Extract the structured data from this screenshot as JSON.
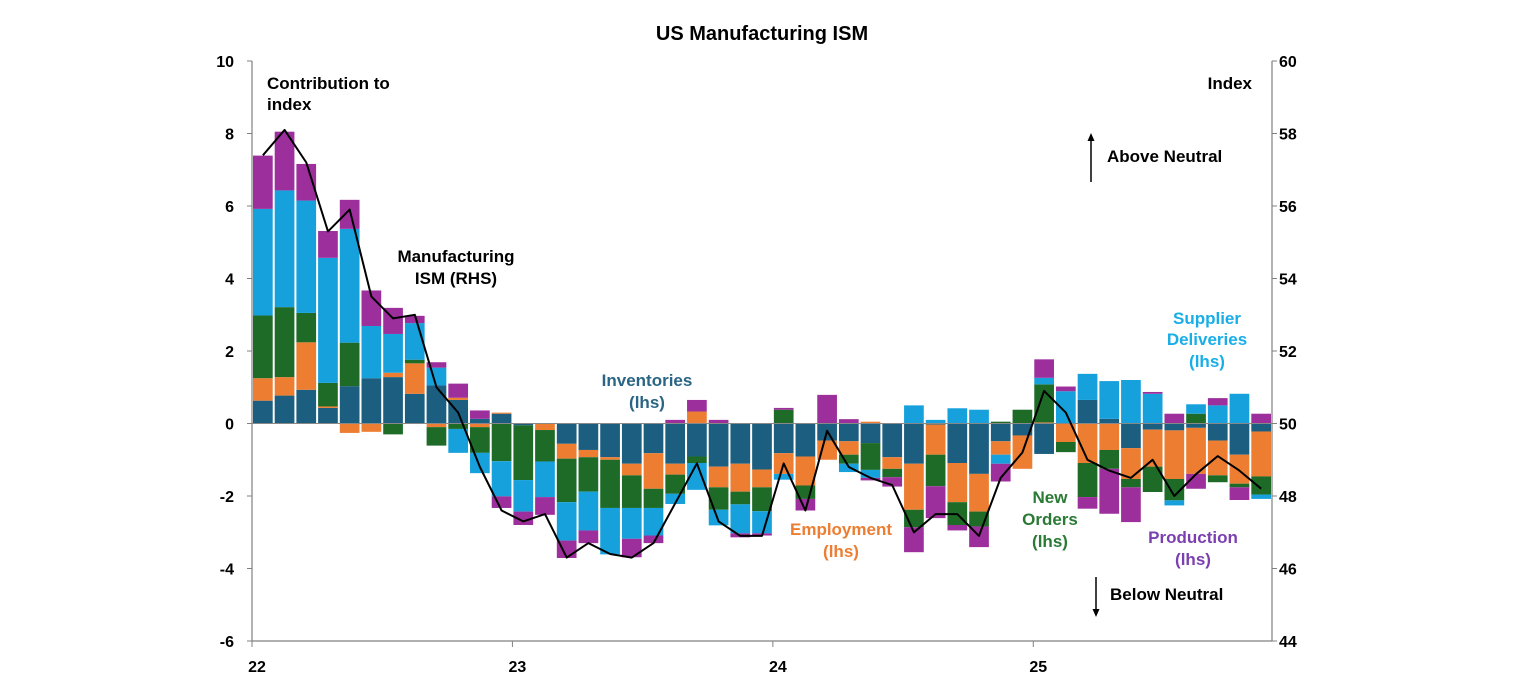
{
  "chart_data": {
    "type": "bar",
    "title": "US Manufacturing ISM",
    "left_axis": {
      "label_lines": [
        "Contribution to",
        "index"
      ],
      "ylim": [
        -6,
        10
      ],
      "ticks": [
        "10",
        "8",
        "6",
        "4",
        "2",
        "0",
        "-2",
        "-4",
        "-6"
      ]
    },
    "right_axis": {
      "label": "Index",
      "ylim": [
        44,
        60
      ],
      "ticks": [
        "60",
        "58",
        "56",
        "54",
        "52",
        "50",
        "48",
        "46",
        "44"
      ]
    },
    "x_axis": {
      "ticks": [
        "22",
        "23",
        "24",
        "25"
      ],
      "range": [
        "2022-01",
        "2025-11"
      ],
      "frequency": "monthly"
    },
    "grid": false,
    "stacked": true,
    "series": [
      {
        "key": "inv",
        "color": "#1b5e80",
        "label_lines": [
          "Inventories",
          "(lhs)"
        ],
        "label_color": "#2a6585",
        "values": [
          0.63,
          0.77,
          0.93,
          0.43,
          1.03,
          1.25,
          1.28,
          0.82,
          1.05,
          0.65,
          0.13,
          0.27,
          -0.05,
          0,
          -0.56,
          -0.73,
          -0.93,
          -1.11,
          -0.82,
          -1.11,
          -0.91,
          -1.19,
          -1.11,
          -1.27,
          -0.82,
          -0.91,
          -0.47,
          -0.49,
          -0.54,
          -0.93,
          -1.11,
          -0.03,
          -1.09,
          -1.39,
          -0.49,
          -0.33,
          -0.84,
          0,
          0.65,
          0.13,
          -0.68,
          -0.17,
          -0.19,
          -0.12,
          -0.47,
          -0.86,
          -0.22
        ]
      },
      {
        "key": "emp",
        "color": "#ed7d31",
        "label_lines": [
          "Employment",
          "(lhs)"
        ],
        "label_color": "#ed7d31",
        "values": [
          0.62,
          0.51,
          1.31,
          0.04,
          -0.26,
          -0.23,
          0.12,
          0.84,
          -0.1,
          0.06,
          -0.1,
          0.03,
          0,
          -0.18,
          -0.41,
          -0.2,
          -0.07,
          -0.32,
          -0.98,
          -0.3,
          0.33,
          -0.57,
          -0.77,
          -0.49,
          -0.57,
          -0.8,
          -0.53,
          -0.37,
          0.05,
          -0.32,
          -1.27,
          -0.83,
          -1.08,
          -1.04,
          -0.37,
          -0.92,
          0.03,
          -0.51,
          -1.09,
          -0.73,
          -0.85,
          -1.02,
          -1.34,
          -1.27,
          -0.96,
          -0.8,
          -1.24
        ]
      },
      {
        "key": "no",
        "color": "#1e6b28",
        "label_lines": [
          "New",
          "Orders",
          "(lhs)"
        ],
        "label_color": "#2a7a35",
        "values": [
          1.73,
          1.93,
          0.81,
          0.65,
          1.2,
          0,
          -0.3,
          0.1,
          -0.51,
          -0.15,
          -0.71,
          -1.04,
          -1.51,
          -0.87,
          -1.2,
          -0.95,
          -1.33,
          -0.9,
          -0.53,
          -0.53,
          -0.18,
          -0.62,
          -0.35,
          -0.66,
          0.38,
          -0.37,
          0,
          -0.25,
          -0.74,
          -0.23,
          -0.48,
          -0.87,
          -0.63,
          -0.41,
          0.05,
          0.38,
          1.05,
          -0.28,
          -0.94,
          -0.52,
          -0.23,
          -0.7,
          -0.59,
          0.27,
          -0.19,
          -0.1,
          -0.5
        ]
      },
      {
        "key": "sd",
        "color": "#16a1dc",
        "label_lines": [
          "Supplier",
          "Deliveries",
          "(lhs)"
        ],
        "label_color": "#19aee8",
        "values": [
          2.94,
          3.22,
          3.1,
          3.45,
          3.14,
          1.44,
          1.07,
          1.01,
          0.49,
          -0.66,
          -0.56,
          -0.97,
          -0.87,
          -0.98,
          -1.06,
          -1.07,
          -1.28,
          -0.85,
          -0.76,
          -0.28,
          -0.74,
          -0.43,
          -0.8,
          -0.61,
          -0.16,
          0,
          0,
          -0.23,
          -0.22,
          0,
          0.5,
          0.1,
          0.42,
          0.38,
          -0.25,
          0,
          0.18,
          0.89,
          0.72,
          1.04,
          1.2,
          0.82,
          -0.14,
          0.26,
          0.5,
          0.82,
          -0.12
        ]
      },
      {
        "key": "prod",
        "color": "#9c2f9c",
        "label_lines": [
          "Production",
          "(lhs)"
        ],
        "label_color": "#7b3fb0",
        "values": [
          1.47,
          1.62,
          1.01,
          0.74,
          0.8,
          0.98,
          0.72,
          0.2,
          0.15,
          0.39,
          0.23,
          -0.32,
          -0.37,
          -0.49,
          -0.48,
          -0.35,
          0,
          -0.51,
          -0.21,
          0.1,
          0.32,
          0.1,
          -0.11,
          -0.06,
          0.05,
          -0.32,
          0.79,
          0.12,
          -0.07,
          -0.26,
          -0.69,
          -0.88,
          -0.15,
          -0.57,
          -0.49,
          0,
          0.51,
          0.13,
          -0.32,
          -1.24,
          -0.96,
          0.05,
          0.27,
          -0.41,
          0.2,
          -0.35,
          0.27
        ]
      }
    ],
    "line": {
      "type": "line",
      "axis": "right",
      "color": "#000000",
      "label_lines": [
        "Manufacturing",
        "ISM (RHS)"
      ],
      "values": [
        57.4,
        58.1,
        57.2,
        55.3,
        55.9,
        53.5,
        52.9,
        53.0,
        51.0,
        50.3,
        48.8,
        47.6,
        47.3,
        47.5,
        46.3,
        46.7,
        46.4,
        46.3,
        46.7,
        47.8,
        48.9,
        47.3,
        46.9,
        46.9,
        48.9,
        47.6,
        49.8,
        48.8,
        48.5,
        48.3,
        47.0,
        47.5,
        47.5,
        46.9,
        48.5,
        49.2,
        50.9,
        50.3,
        49.0,
        48.7,
        48.5,
        49.0,
        48.0,
        48.6,
        49.1,
        48.7,
        48.2
      ]
    },
    "annotations": {
      "above": "Above Neutral",
      "below": "Below Neutral"
    }
  }
}
